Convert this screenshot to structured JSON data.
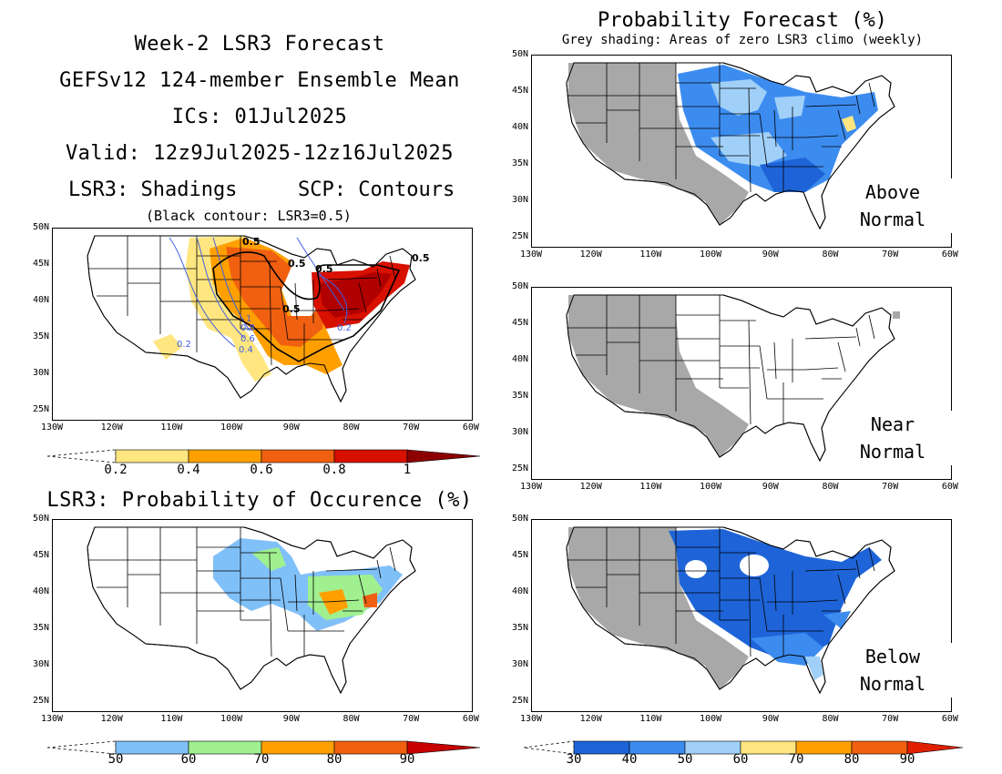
{
  "header": {
    "line1": "Week-2 LSR3 Forecast",
    "line2": "GEFSv12 124-member Ensemble Mean",
    "line3": "ICs: 01Jul2025",
    "line4": "Valid: 12z9Jul2025-12z16Jul2025",
    "shade_label": "LSR3: Shadings",
    "contour_label": "SCP: Contours",
    "contour_note": "(Black contour: LSR3=0.5)",
    "occurrence_title": "LSR3: Probability of Occurence (%)"
  },
  "right_header": {
    "title": "Probability Forecast (%)",
    "subtitle": "Grey shading: Areas of zero LSR3 climo (weekly)"
  },
  "axes": {
    "lat_labels": [
      "50N",
      "45N",
      "40N",
      "35N",
      "30N",
      "25N"
    ],
    "lon_labels": [
      "130W",
      "120W",
      "110W",
      "100W",
      "90W",
      "80W",
      "70W",
      "60W"
    ]
  },
  "panels": {
    "above": {
      "line1": "Above",
      "line2": "Normal"
    },
    "near": {
      "line1": "Near",
      "line2": "Normal"
    },
    "below": {
      "line1": "Below",
      "line2": "Normal"
    }
  },
  "contour_labels": {
    "c05": "0.5",
    "c1": "1",
    "c08": "0.8",
    "c06": "0.6",
    "c04": "0.4",
    "c02": "0.2"
  },
  "colorbars": {
    "lsr3": {
      "labels": [
        "0.2",
        "0.4",
        "0.6",
        "0.8",
        "1"
      ],
      "colors": [
        "#ffe680",
        "#ffa000",
        "#f06010",
        "#d81000",
        "#8c0000"
      ]
    },
    "occurrence": {
      "labels": [
        "50",
        "60",
        "70",
        "80",
        "90"
      ],
      "colors": [
        "#80c0f8",
        "#a0f090",
        "#ffa000",
        "#f06010",
        "#c80000"
      ]
    },
    "probability": {
      "labels": [
        "30",
        "40",
        "50",
        "60",
        "70",
        "80",
        "90"
      ],
      "colors": [
        "#1e64d8",
        "#3c8cf0",
        "#a0d0f8",
        "#ffe680",
        "#ffa000",
        "#f06010",
        "#e02000"
      ]
    }
  },
  "colors": {
    "grey_zero_climo": "#a8a8a8",
    "contour_blue": "#4060e0",
    "contour_black": "#000000"
  }
}
